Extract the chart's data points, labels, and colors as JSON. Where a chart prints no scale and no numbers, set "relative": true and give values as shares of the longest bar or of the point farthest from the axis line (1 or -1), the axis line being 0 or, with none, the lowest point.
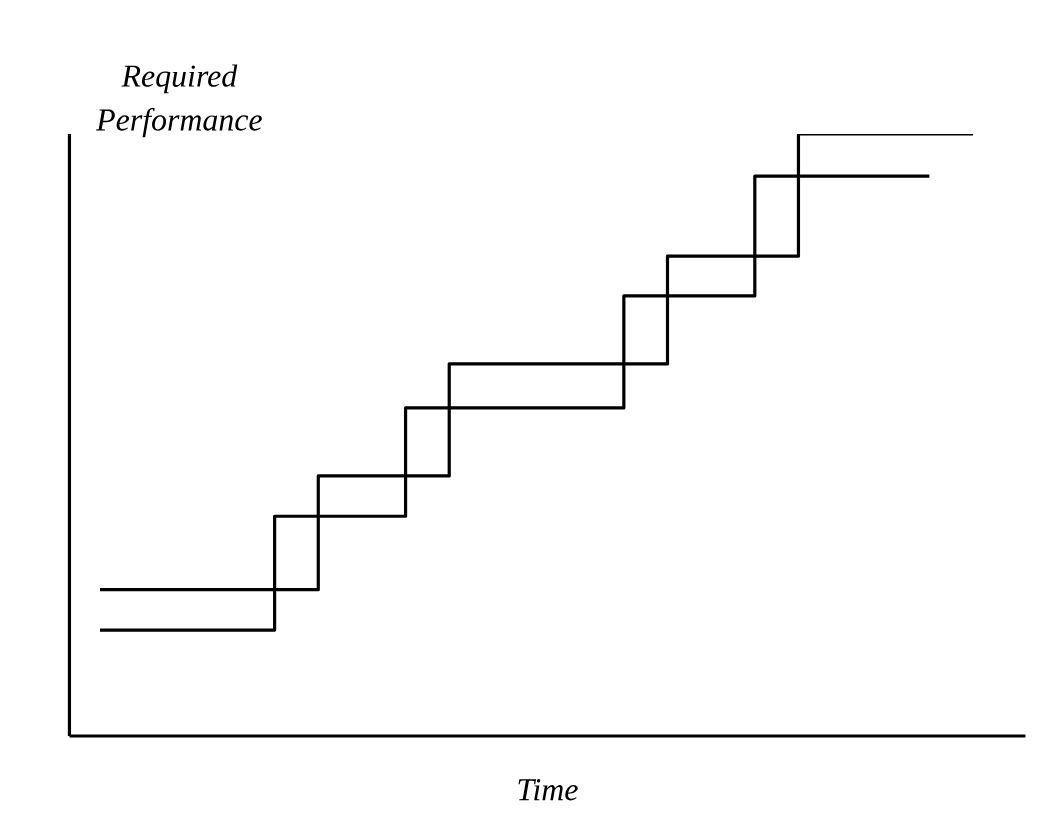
{
  "chart_data": {
    "type": "step",
    "relative": true,
    "xlabel": "Time",
    "ylabel": "Required Performance",
    "tick_labels": false,
    "marker": "none",
    "line_style": "solid",
    "categories": [
      null,
      null,
      null,
      null,
      null,
      null,
      null,
      null,
      null,
      null,
      null,
      null,
      null,
      null,
      null,
      null,
      null,
      null,
      null,
      null,
      null
    ],
    "series": [
      {
        "color": "#000000",
        "values": [
          0.176,
          0.176,
          0.176,
          0.176,
          0.365,
          0.365,
          0.365,
          0.545,
          0.545,
          0.545,
          0.545,
          0.545,
          0.731,
          0.731,
          0.731,
          0.93,
          0.93,
          0.93,
          0.93,
          0.93,
          null
        ]
      },
      {
        "color": "#000000",
        "values": [
          0.243,
          0.243,
          0.243,
          0.243,
          0.243,
          0.432,
          0.432,
          0.432,
          0.618,
          0.618,
          0.618,
          0.618,
          0.618,
          0.797,
          0.797,
          0.797,
          1.0,
          1.0,
          1.0,
          1.0,
          1.0
        ]
      }
    ]
  }
}
